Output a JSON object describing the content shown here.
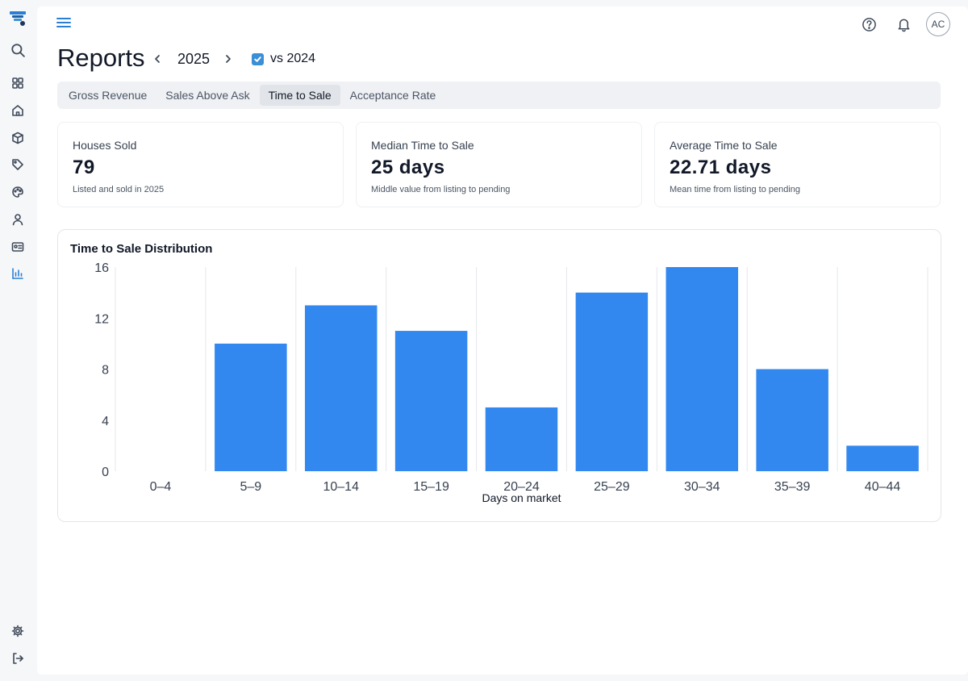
{
  "sidebar": {
    "items": [
      {
        "icon": "logo-icon"
      },
      {
        "icon": "search-icon"
      },
      {
        "icon": "dashboard-icon"
      },
      {
        "icon": "home-icon"
      },
      {
        "icon": "box-icon"
      },
      {
        "icon": "tag-icon"
      },
      {
        "icon": "palette-icon"
      },
      {
        "icon": "user-icon"
      },
      {
        "icon": "id-card-icon"
      },
      {
        "icon": "bar-chart-icon"
      },
      {
        "icon": "settings-icon"
      },
      {
        "icon": "logout-icon"
      }
    ]
  },
  "header": {
    "avatar_initials": "AC"
  },
  "page": {
    "title": "Reports",
    "year": "2025",
    "compare_label": "vs 2024",
    "compare_checked": true
  },
  "tabs": [
    {
      "label": "Gross Revenue",
      "active": false
    },
    {
      "label": "Sales Above Ask",
      "active": false
    },
    {
      "label": "Time to Sale",
      "active": true
    },
    {
      "label": "Acceptance Rate",
      "active": false
    }
  ],
  "stats": [
    {
      "label": "Houses Sold",
      "value": "79",
      "note": "Listed and sold in 2025"
    },
    {
      "label": "Median Time to Sale",
      "value": "25 days",
      "note": "Middle value from listing to pending"
    },
    {
      "label": "Average Time to Sale",
      "value": "22.71 days",
      "note": "Mean time from listing to pending"
    }
  ],
  "chart_data": {
    "type": "bar",
    "title": "Time to Sale Distribution",
    "xlabel": "Days on market",
    "ylabel": "",
    "categories": [
      "0–4",
      "5–9",
      "10–14",
      "15–19",
      "20–24",
      "25–29",
      "30–34",
      "35–39",
      "40–44"
    ],
    "values": [
      0,
      10,
      13,
      11,
      5,
      14,
      16,
      8,
      2
    ],
    "ylim": [
      0,
      16
    ],
    "yticks": [
      0,
      4,
      8,
      12,
      16
    ],
    "grid": "vertical",
    "bar_color": "#3388f0"
  }
}
